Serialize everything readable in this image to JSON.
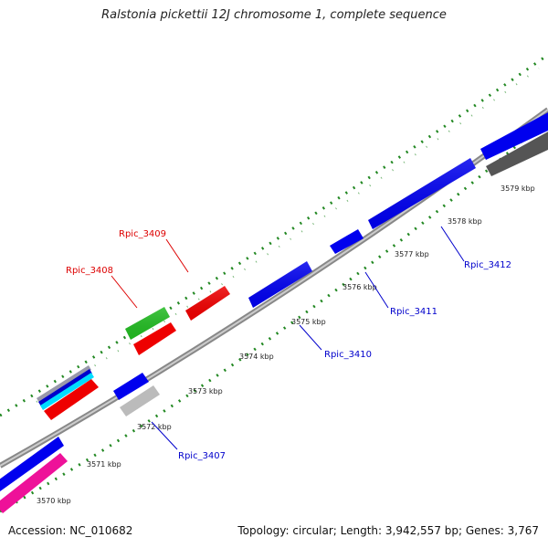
{
  "title": "Ralstonia pickettii 12J chromosome 1, complete sequence",
  "footer": {
    "accession": "Accession: NC_010682",
    "topology": "Topology: circular; Length: 3,942,557 bp; Genes: 3,767"
  },
  "ticks": [
    "3570 kbp",
    "3571 kbp",
    "3572 kbp",
    "3573 kbp",
    "3574 kbp",
    "3575 kbp",
    "3576 kbp",
    "3577 kbp",
    "3578 kbp",
    "3579 kbp"
  ],
  "gene_labels": [
    {
      "name": "Rpic_3409",
      "color": "#dd0000"
    },
    {
      "name": "Rpic_3408",
      "color": "#dd0000"
    },
    {
      "name": "Rpic_3407",
      "color": "#0000cc"
    },
    {
      "name": "Rpic_3410",
      "color": "#0000cc"
    },
    {
      "name": "Rpic_3411",
      "color": "#0000cc"
    },
    {
      "name": "Rpic_3412",
      "color": "#0000cc"
    }
  ],
  "colors": {
    "blue_gene": "#0000ee",
    "red_gene": "#ee0000",
    "green_gene": "#22bb22",
    "magenta_gene": "#ee1199",
    "grey_gene": "#aaaaaa",
    "dark_gene": "#555555",
    "cyan_gene": "#00ddff",
    "backbone": "#888888",
    "dots": "#228822"
  }
}
